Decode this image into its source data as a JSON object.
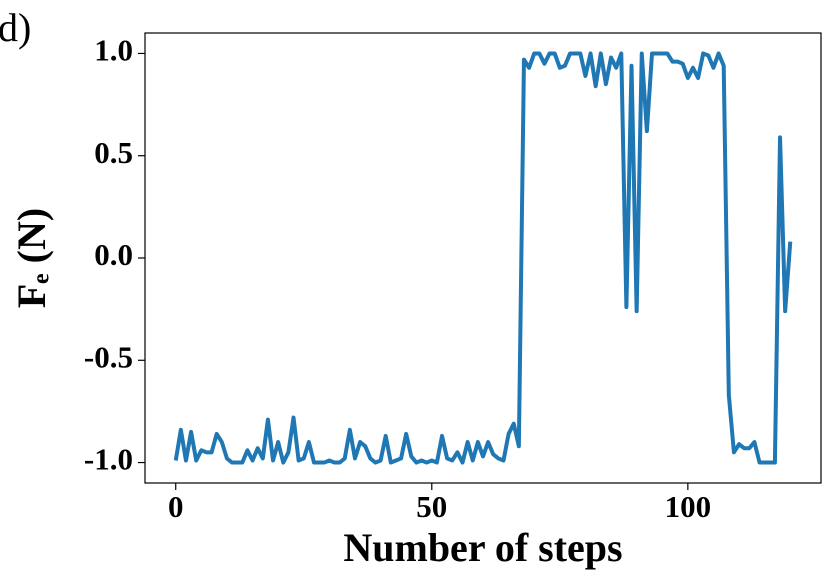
{
  "chart_data": {
    "type": "line",
    "title": "d)",
    "xlabel": "Number of steps",
    "ylabel": "Fₑ (N)",
    "xlim": [
      -6,
      126
    ],
    "xticks": [
      0,
      50,
      100
    ],
    "ylim": [
      -1.1,
      1.1
    ],
    "yticks": [
      {
        "value": -1.0,
        "label": "-1.0"
      },
      {
        "value": -0.5,
        "label": "-0.5"
      },
      {
        "value": 0,
        "label": "0.0"
      },
      {
        "value": 0.5,
        "label": "0.5"
      },
      {
        "value": 1.0,
        "label": "1.0"
      }
    ],
    "series": [
      {
        "color": "#1f77b4",
        "values": [
          -0.99,
          -0.84,
          -0.99,
          -0.85,
          -0.99,
          -0.94,
          -0.95,
          -0.95,
          -0.86,
          -0.9,
          -0.98,
          -1.0,
          -1.0,
          -1.0,
          -0.94,
          -0.99,
          -0.93,
          -0.98,
          -0.79,
          -0.99,
          -0.9,
          -1.0,
          -0.95,
          -0.78,
          -0.99,
          -0.98,
          -0.9,
          -1.0,
          -1.0,
          -1.0,
          -0.99,
          -1.0,
          -1.0,
          -0.98,
          -0.84,
          -0.98,
          -0.9,
          -0.92,
          -0.98,
          -1.0,
          -0.99,
          -0.87,
          -1.0,
          -0.99,
          -0.98,
          -0.86,
          -0.97,
          -1.0,
          -0.99,
          -1.0,
          -0.99,
          -1.0,
          -0.87,
          -0.98,
          -0.99,
          -0.95,
          -1.0,
          -0.9,
          -0.99,
          -0.9,
          -0.97,
          -0.9,
          -0.96,
          -0.98,
          -0.99,
          -0.86,
          -0.81,
          -0.92,
          0.97,
          0.93,
          1.0,
          1.0,
          0.95,
          1.0,
          1.0,
          0.93,
          0.94,
          1.0,
          1.0,
          1.0,
          0.89,
          1.0,
          0.84,
          1.0,
          0.85,
          0.98,
          0.93,
          1.0,
          -0.24,
          0.94,
          -0.26,
          1.0,
          0.62,
          1.0,
          1.0,
          1.0,
          1.0,
          0.96,
          0.96,
          0.95,
          0.88,
          0.93,
          0.88,
          1.0,
          0.99,
          0.93,
          1.0,
          0.94,
          -0.67,
          -0.95,
          -0.91,
          -0.93,
          -0.93,
          -0.9,
          -1.0,
          -1.0,
          -1.0,
          -1.0,
          0.59,
          -0.26,
          0.08
        ]
      }
    ]
  }
}
